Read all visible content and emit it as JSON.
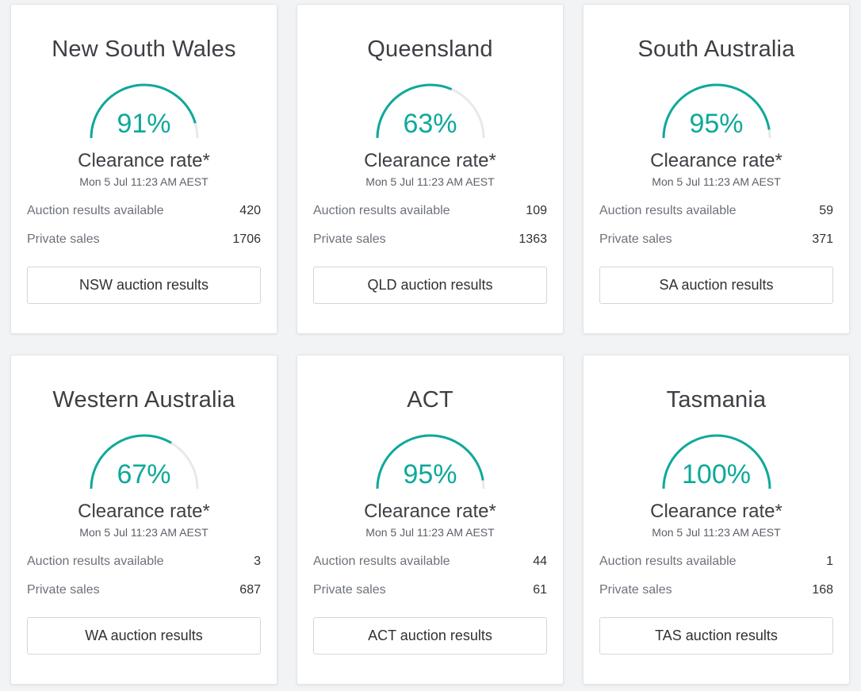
{
  "accent_color": "#0ea99a",
  "track_color": "#e8e9eb",
  "cards": [
    {
      "state": "New South Wales",
      "clearance_rate": 0.91,
      "clearance_text": "91%",
      "rate_label": "Clearance rate*",
      "timestamp": "Mon 5 Jul 11:23 AM AEST",
      "auction_label": "Auction results available",
      "auction_count": "420",
      "private_label": "Private sales",
      "private_count": "1706",
      "button_label": "NSW auction results"
    },
    {
      "state": "Queensland",
      "clearance_rate": 0.63,
      "clearance_text": "63%",
      "rate_label": "Clearance rate*",
      "timestamp": "Mon 5 Jul 11:23 AM AEST",
      "auction_label": "Auction results available",
      "auction_count": "109",
      "private_label": "Private sales",
      "private_count": "1363",
      "button_label": "QLD auction results"
    },
    {
      "state": "South Australia",
      "clearance_rate": 0.95,
      "clearance_text": "95%",
      "rate_label": "Clearance rate*",
      "timestamp": "Mon 5 Jul 11:23 AM AEST",
      "auction_label": "Auction results available",
      "auction_count": "59",
      "private_label": "Private sales",
      "private_count": "371",
      "button_label": "SA auction results"
    },
    {
      "state": "Western Australia",
      "clearance_rate": 0.67,
      "clearance_text": "67%",
      "rate_label": "Clearance rate*",
      "timestamp": "Mon 5 Jul 11:23 AM AEST",
      "auction_label": "Auction results available",
      "auction_count": "3",
      "private_label": "Private sales",
      "private_count": "687",
      "button_label": "WA auction results"
    },
    {
      "state": "ACT",
      "clearance_rate": 0.95,
      "clearance_text": "95%",
      "rate_label": "Clearance rate*",
      "timestamp": "Mon 5 Jul 11:23 AM AEST",
      "auction_label": "Auction results available",
      "auction_count": "44",
      "private_label": "Private sales",
      "private_count": "61",
      "button_label": "ACT auction results"
    },
    {
      "state": "Tasmania",
      "clearance_rate": 1.0,
      "clearance_text": "100%",
      "rate_label": "Clearance rate*",
      "timestamp": "Mon 5 Jul 11:23 AM AEST",
      "auction_label": "Auction results available",
      "auction_count": "1",
      "private_label": "Private sales",
      "private_count": "168",
      "button_label": "TAS auction results"
    }
  ]
}
